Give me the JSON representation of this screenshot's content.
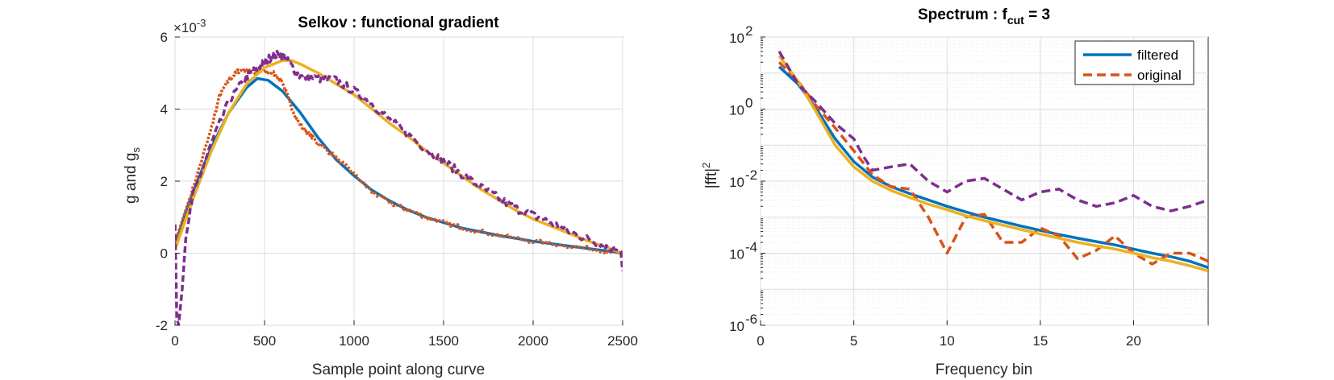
{
  "colors": {
    "blue": "#0072BD",
    "orange": "#D95319",
    "yellow": "#EDB120",
    "purple": "#7E2F8E",
    "grid": "#dcdcdc",
    "axis": "#262626"
  },
  "chart_data": [
    {
      "type": "line",
      "title": "Selkov : functional gradient",
      "xlabel": "Sample point along curve",
      "ylabel_main": "g and g",
      "ylabel_sub": "s",
      "multiplier_base": "×10",
      "multiplier_exp": "-3",
      "xlim": [
        0,
        2500
      ],
      "ylim": [
        -2,
        6
      ],
      "xticks": [
        0,
        500,
        1000,
        1500,
        2000,
        2500
      ],
      "yticks": [
        -2,
        0,
        2,
        4,
        6
      ],
      "xtick_labels": [
        "0",
        "500",
        "1000",
        "1500",
        "2000",
        "2500"
      ],
      "ytick_labels": [
        "-2",
        "0",
        "2",
        "4",
        "6"
      ],
      "grid": true,
      "series": [
        {
          "color": "blue",
          "style": "solid",
          "x": [
            0,
            50,
            100,
            200,
            300,
            400,
            460,
            520,
            600,
            700,
            800,
            900,
            1000,
            1100,
            1200,
            1300,
            1400,
            1500,
            1600,
            1800,
            2000,
            2200,
            2400,
            2500
          ],
          "y": [
            0.2,
            1.0,
            1.7,
            2.9,
            3.9,
            4.6,
            4.85,
            4.8,
            4.5,
            3.9,
            3.2,
            2.6,
            2.15,
            1.75,
            1.45,
            1.2,
            1.0,
            0.85,
            0.7,
            0.5,
            0.33,
            0.2,
            0.07,
            0.0
          ]
        },
        {
          "color": "orange",
          "style": "dotted-noisy",
          "x": [
            0,
            100,
            200,
            250,
            300,
            350,
            400,
            450,
            500,
            550,
            600,
            650,
            700,
            750,
            800,
            900,
            1000,
            1100,
            1200,
            1300,
            1400,
            1500,
            1600,
            1800,
            2000,
            2200,
            2400,
            2500
          ],
          "y": [
            0.3,
            1.8,
            3.4,
            4.4,
            4.8,
            5.05,
            5.1,
            5.0,
            5.05,
            5.0,
            4.75,
            4.05,
            3.55,
            3.3,
            3.05,
            2.65,
            2.2,
            1.7,
            1.4,
            1.2,
            1.0,
            0.85,
            0.72,
            0.5,
            0.33,
            0.2,
            0.07,
            0.0
          ]
        },
        {
          "color": "yellow",
          "style": "solid",
          "x": [
            0,
            50,
            100,
            200,
            300,
            400,
            500,
            600,
            650,
            700,
            800,
            900,
            1000,
            1100,
            1200,
            1300,
            1400,
            1500,
            1600,
            1700,
            1800,
            1900,
            2000,
            2100,
            2200,
            2300,
            2400,
            2500
          ],
          "y": [
            0.1,
            0.8,
            1.5,
            2.8,
            3.9,
            4.7,
            5.15,
            5.35,
            5.35,
            5.25,
            5.0,
            4.7,
            4.4,
            4.0,
            3.6,
            3.25,
            2.85,
            2.5,
            2.15,
            1.8,
            1.5,
            1.2,
            0.95,
            0.75,
            0.55,
            0.35,
            0.18,
            0.0
          ]
        },
        {
          "color": "purple",
          "style": "dashed-noisy",
          "x": [
            0,
            10,
            20,
            40,
            60,
            100,
            200,
            300,
            400,
            450,
            500,
            550,
            600,
            650,
            700,
            800,
            900,
            1000,
            1100,
            1200,
            1300,
            1400,
            1500,
            1600,
            1700,
            1800,
            1900,
            2000,
            2100,
            2200,
            2300,
            2400,
            2490,
            2500
          ],
          "y": [
            0.8,
            -1.8,
            -2.0,
            -1.0,
            0.4,
            1.6,
            3.0,
            4.2,
            4.9,
            5.1,
            5.3,
            5.5,
            5.5,
            5.2,
            4.9,
            4.85,
            4.8,
            4.5,
            4.15,
            3.7,
            3.3,
            2.9,
            2.55,
            2.2,
            1.85,
            1.55,
            1.25,
            1.05,
            0.85,
            0.6,
            0.4,
            0.2,
            0.05,
            -0.5
          ]
        }
      ]
    },
    {
      "type": "line",
      "title_main": "Spectrum : f",
      "title_sub": "cut",
      "title_tail": " = 3",
      "xlabel": "Frequency bin",
      "ylabel_main": "|fft|",
      "ylabel_sup": "2",
      "xlim": [
        0,
        24
      ],
      "ylim": [
        1e-06,
        100
      ],
      "yscale": "log",
      "xticks": [
        0,
        5,
        10,
        15,
        20
      ],
      "xtick_labels": [
        "0",
        "5",
        "10",
        "15",
        "20"
      ],
      "ytick_exps": [
        -6,
        -4,
        -2,
        0,
        2
      ],
      "ytick_base": "10",
      "ytick_exp_labels": [
        "-6",
        "-4",
        "-2",
        "0",
        "2"
      ],
      "grid": true,
      "legend": {
        "position": "top-right",
        "entries": [
          {
            "label": "filtered",
            "color": "blue",
            "style": "solid"
          },
          {
            "label": "original",
            "color": "orange",
            "style": "dashed"
          }
        ]
      },
      "series": [
        {
          "name": "filtered",
          "color": "blue",
          "style": "solid",
          "x": [
            1,
            2,
            3,
            4,
            5,
            6,
            7,
            8,
            9,
            10,
            11,
            12,
            13,
            14,
            15,
            16,
            17,
            18,
            19,
            20,
            21,
            22,
            23,
            24
          ],
          "y": [
            15,
            5,
            1.0,
            0.15,
            0.035,
            0.013,
            0.007,
            0.0045,
            0.003,
            0.002,
            0.0014,
            0.001,
            0.00075,
            0.00056,
            0.00043,
            0.00033,
            0.00026,
            0.00021,
            0.00017,
            0.00013,
            0.0001,
            8e-05,
            6e-05,
            4e-05
          ]
        },
        {
          "name": "original",
          "color": "orange",
          "style": "dashed",
          "x": [
            1,
            2,
            3,
            4,
            5,
            6,
            7,
            8,
            9,
            10,
            11,
            12,
            13,
            14,
            15,
            16,
            17,
            18,
            19,
            20,
            21,
            22,
            23,
            24
          ],
          "y": [
            20,
            6,
            1.2,
            0.3,
            0.07,
            0.015,
            0.007,
            0.006,
            0.001,
            0.0001,
            0.001,
            0.0012,
            0.0002,
            0.0002,
            0.0005,
            0.0003,
            7e-05,
            0.00012,
            0.0003,
            0.0001,
            5e-05,
            0.0001,
            0.0001,
            6e-05
          ]
        },
        {
          "color": "yellow",
          "style": "solid",
          "x": [
            1,
            2,
            3,
            4,
            5,
            6,
            7,
            8,
            9,
            10,
            11,
            12,
            13,
            14,
            15,
            16,
            17,
            18,
            19,
            20,
            21,
            22,
            23,
            24
          ],
          "y": [
            30,
            6,
            0.8,
            0.1,
            0.025,
            0.01,
            0.0055,
            0.0035,
            0.0023,
            0.0016,
            0.0011,
            0.0008,
            0.0006,
            0.00045,
            0.00034,
            0.00026,
            0.0002,
            0.00016,
            0.00013,
            0.0001,
            7.5e-05,
            6e-05,
            4.5e-05,
            3.2e-05
          ]
        },
        {
          "color": "purple",
          "style": "dashed",
          "x": [
            1,
            2,
            3,
            4,
            5,
            5.5,
            6,
            7,
            8,
            9,
            10,
            11,
            12,
            13,
            14,
            15,
            16,
            17,
            18,
            19,
            20,
            21,
            22,
            23,
            24
          ],
          "y": [
            40,
            5,
            1.5,
            0.4,
            0.15,
            0.05,
            0.02,
            0.025,
            0.03,
            0.01,
            0.005,
            0.01,
            0.012,
            0.006,
            0.003,
            0.005,
            0.006,
            0.003,
            0.002,
            0.0025,
            0.004,
            0.002,
            0.0015,
            0.002,
            0.003
          ]
        }
      ]
    }
  ]
}
